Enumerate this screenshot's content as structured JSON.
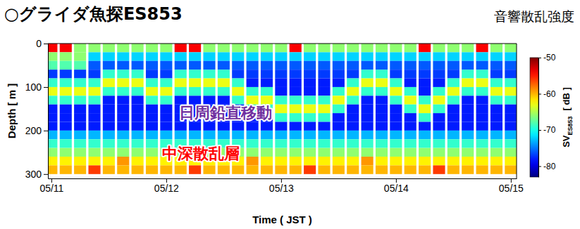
{
  "chart_data": {
    "type": "heatmap",
    "title": "○グライダ魚探ES853",
    "subtitle": "音響散乱強度",
    "x_label": "Time ( JST )",
    "y_label": "Depth [ m ]",
    "annotations": [
      {
        "text": "日周鉛直移動",
        "color": "#7030a0"
      },
      {
        "text": "中深散乱層",
        "color": "#ff0000"
      }
    ],
    "x": [
      11,
      11.125,
      11.25,
      11.375,
      11.5,
      11.625,
      11.75,
      11.875,
      12,
      12.125,
      12.25,
      12.375,
      12.5,
      12.625,
      12.75,
      12.875,
      13,
      13.125,
      13.25,
      13.375,
      13.5,
      13.625,
      13.75,
      13.875,
      14,
      14.125,
      14.25,
      14.375,
      14.5,
      14.625,
      14.75,
      14.875,
      15
    ],
    "y": [
      10,
      30,
      50,
      70,
      90,
      110,
      130,
      150,
      170,
      190,
      210,
      230,
      250,
      270,
      290
    ],
    "cells": [
      [
        -54,
        -54,
        -66,
        -66,
        -66,
        -66,
        -66,
        -66,
        -66,
        -54,
        -54,
        -66,
        -66,
        -66,
        -66,
        -66,
        -66,
        -54,
        -66,
        -66,
        -66,
        -66,
        -66,
        -66,
        -66,
        -66,
        -54,
        -66,
        -66,
        -66,
        -54,
        -66,
        -66
      ],
      [
        -66,
        -66,
        -66,
        -72,
        -72,
        -72,
        -72,
        -72,
        -72,
        -72,
        -72,
        -72,
        -72,
        -72,
        -72,
        -72,
        -72,
        -72,
        -72,
        -72,
        -72,
        -72,
        -72,
        -72,
        -72,
        -72,
        -72,
        -72,
        -72,
        -72,
        -72,
        -72,
        -72
      ],
      [
        -68,
        -68,
        -68,
        -76,
        -76,
        -76,
        -76,
        -76,
        -76,
        -76,
        -76,
        -76,
        -76,
        -76,
        -76,
        -76,
        -76,
        -76,
        -76,
        -76,
        -76,
        -76,
        -76,
        -76,
        -76,
        -76,
        -76,
        -76,
        -76,
        -76,
        -76,
        -76,
        -76
      ],
      [
        -77,
        -77,
        -77,
        -77,
        -69,
        -69,
        -69,
        -77,
        -77,
        -69,
        -69,
        -69,
        -69,
        -77,
        -77,
        -77,
        -77,
        -77,
        -77,
        -77,
        -77,
        -77,
        -69,
        -69,
        -77,
        -77,
        -77,
        -77,
        -77,
        -69,
        -69,
        -77,
        -77
      ],
      [
        -69,
        -69,
        -69,
        -69,
        -63,
        -63,
        -63,
        -69,
        -69,
        -63,
        -63,
        -63,
        -63,
        -69,
        -78,
        -78,
        -78,
        -78,
        -78,
        -78,
        -78,
        -69,
        -63,
        -63,
        -69,
        -78,
        -78,
        -78,
        -69,
        -63,
        -63,
        -69,
        -69
      ],
      [
        -63,
        -63,
        -63,
        -63,
        -69,
        -69,
        -69,
        -63,
        -63,
        -69,
        -69,
        -69,
        -69,
        -63,
        -69,
        -69,
        -78,
        -78,
        -78,
        -78,
        -69,
        -63,
        -69,
        -69,
        -63,
        -69,
        -78,
        -69,
        -63,
        -69,
        -69,
        -63,
        -63
      ],
      [
        -69,
        -69,
        -69,
        -69,
        -78,
        -78,
        -78,
        -69,
        -69,
        -78,
        -78,
        -78,
        -78,
        -69,
        -63,
        -63,
        -69,
        -69,
        -69,
        -69,
        -63,
        -69,
        -78,
        -78,
        -69,
        -63,
        -69,
        -63,
        -69,
        -78,
        -78,
        -69,
        -69
      ],
      [
        -78,
        -78,
        -78,
        -78,
        -78,
        -78,
        -78,
        -78,
        -78,
        -78,
        -78,
        -78,
        -78,
        -78,
        -69,
        -69,
        -63,
        -63,
        -63,
        -63,
        -69,
        -78,
        -78,
        -78,
        -78,
        -69,
        -63,
        -69,
        -78,
        -78,
        -78,
        -78,
        -78
      ],
      [
        -78,
        -78,
        -78,
        -78,
        -78,
        -78,
        -78,
        -78,
        -78,
        -78,
        -78,
        -78,
        -78,
        -78,
        -78,
        -78,
        -69,
        -69,
        -69,
        -69,
        -78,
        -78,
        -78,
        -78,
        -78,
        -78,
        -69,
        -78,
        -78,
        -78,
        -78,
        -78,
        -78
      ],
      [
        -78,
        -78,
        -78,
        -78,
        -78,
        -78,
        -78,
        -78,
        -78,
        -78,
        -78,
        -78,
        -78,
        -78,
        -78,
        -78,
        -78,
        -78,
        -78,
        -78,
        -78,
        -78,
        -78,
        -78,
        -78,
        -78,
        -78,
        -78,
        -78,
        -78,
        -78,
        -78,
        -78
      ],
      [
        -73,
        -73,
        -73,
        -73,
        -73,
        -73,
        -73,
        -73,
        -73,
        -73,
        -73,
        -73,
        -73,
        -73,
        -73,
        -73,
        -73,
        -73,
        -73,
        -73,
        -73,
        -73,
        -73,
        -73,
        -73,
        -73,
        -73,
        -73,
        -73,
        -73,
        -73,
        -73,
        -73
      ],
      [
        -69,
        -69,
        -69,
        -69,
        -69,
        -69,
        -69,
        -69,
        -69,
        -69,
        -69,
        -69,
        -69,
        -69,
        -69,
        -69,
        -69,
        -69,
        -69,
        -69,
        -69,
        -69,
        -69,
        -69,
        -69,
        -69,
        -69,
        -69,
        -69,
        -69,
        -69,
        -69,
        -69
      ],
      [
        -66,
        -66,
        -66,
        -66,
        -66,
        -66,
        -66,
        -66,
        -66,
        -66,
        -66,
        -66,
        -66,
        -66,
        -66,
        -66,
        -66,
        -66,
        -66,
        -66,
        -66,
        -66,
        -66,
        -66,
        -66,
        -66,
        -66,
        -66,
        -66,
        -66,
        -66,
        -66,
        -66
      ],
      [
        -62,
        -62,
        -62,
        -62,
        -62,
        -59,
        -62,
        -62,
        -62,
        -62,
        -62,
        -62,
        -62,
        -62,
        -59,
        -62,
        -62,
        -62,
        -62,
        -62,
        -62,
        -62,
        -59,
        -62,
        -62,
        -62,
        -62,
        -62,
        -62,
        -62,
        -62,
        -62,
        -62
      ],
      [
        -60,
        -60,
        -60,
        -56,
        -60,
        -60,
        -60,
        -60,
        -60,
        -60,
        -56,
        -60,
        -60,
        -60,
        -60,
        -60,
        -60,
        -60,
        -56,
        -60,
        -60,
        -60,
        -60,
        -60,
        -60,
        -60,
        -60,
        -56,
        -60,
        -60,
        -60,
        -60,
        -60
      ]
    ],
    "xlim": [
      10.97,
      15.05
    ],
    "xticks": [
      {
        "value": 11,
        "label": "05/11"
      },
      {
        "value": 12,
        "label": "05/12"
      },
      {
        "value": 13,
        "label": "05/13"
      },
      {
        "value": 14,
        "label": "05/14"
      },
      {
        "value": 15,
        "label": "05/15"
      }
    ],
    "ylim": [
      0,
      310
    ],
    "yticks": [
      0,
      100,
      200,
      300
    ],
    "colorbar": {
      "label": "SV",
      "label_subscript": "ES853",
      "unit": "[ dB ]",
      "range": [
        -83,
        -50
      ],
      "ticks": [
        -50,
        -60,
        -70,
        -80
      ]
    }
  }
}
